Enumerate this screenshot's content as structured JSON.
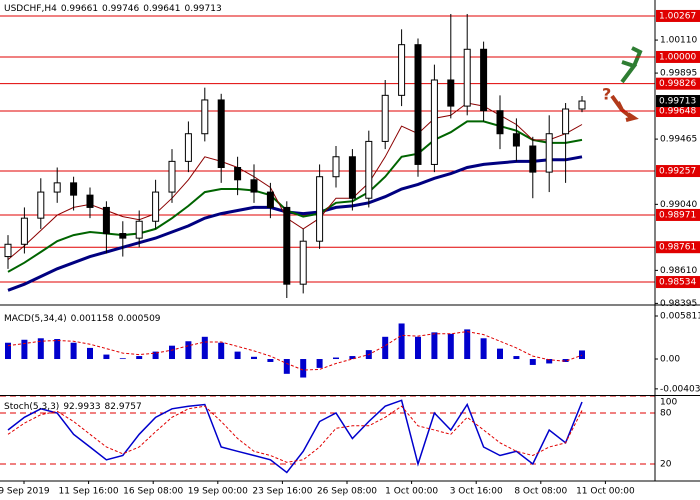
{
  "chart_data": [
    {
      "type": "candlestick",
      "title": "USDCHF,H4",
      "open": [
        0.987,
        0.9878,
        0.9895,
        0.9912,
        0.9918,
        0.991,
        0.9902,
        0.9885,
        0.9882,
        0.9893,
        0.9912,
        0.9932,
        0.995,
        0.9972,
        0.9928,
        0.992,
        0.9912,
        0.9902,
        0.9852,
        0.988,
        0.9922,
        0.9935,
        0.9908,
        0.9945,
        0.9975,
        1.0008,
        0.993,
        0.9985,
        0.9968,
        1.0005,
        0.9965,
        0.995,
        0.9942,
        0.9925,
        0.995,
        0.99661
      ],
      "high": [
        0.9884,
        0.9902,
        0.9921,
        0.9928,
        0.9922,
        0.9915,
        0.9906,
        0.9893,
        0.99,
        0.992,
        0.994,
        0.9958,
        0.998,
        0.9976,
        0.9935,
        0.993,
        0.9918,
        0.9906,
        0.9888,
        0.993,
        0.9942,
        0.994,
        0.9952,
        0.9985,
        1.0018,
        1.0012,
        0.9995,
        1.0028,
        1.0028,
        1.001,
        0.9975,
        0.996,
        0.9948,
        0.9962,
        0.997,
        0.99746
      ],
      "low": [
        0.9862,
        0.9872,
        0.9888,
        0.9905,
        0.99,
        0.9895,
        0.9872,
        0.987,
        0.9876,
        0.9888,
        0.9905,
        0.9925,
        0.9945,
        0.9918,
        0.991,
        0.9905,
        0.9895,
        0.9843,
        0.9846,
        0.9875,
        0.9915,
        0.99,
        0.9902,
        0.994,
        0.9968,
        0.9922,
        0.9925,
        0.996,
        0.9962,
        0.9958,
        0.994,
        0.9932,
        0.9908,
        0.9912,
        0.9918,
        0.99641
      ],
      "close": [
        0.9878,
        0.9895,
        0.9912,
        0.9918,
        0.991,
        0.9902,
        0.9885,
        0.9882,
        0.9893,
        0.9912,
        0.9932,
        0.995,
        0.9972,
        0.9928,
        0.992,
        0.9912,
        0.9902,
        0.9852,
        0.988,
        0.9922,
        0.9935,
        0.9908,
        0.9945,
        0.9975,
        1.0008,
        0.993,
        0.9985,
        0.9968,
        1.0005,
        0.9965,
        0.995,
        0.9942,
        0.9925,
        0.995,
        0.99661,
        0.99713
      ],
      "lines": [
        {
          "color": "#000080",
          "values": [
            0.9848,
            0.9852,
            0.9857,
            0.9862,
            0.9866,
            0.987,
            0.9873,
            0.9876,
            0.9879,
            0.9882,
            0.9886,
            0.989,
            0.9895,
            0.9898,
            0.99,
            0.9902,
            0.9902,
            0.9899,
            0.9898,
            0.9899,
            0.9902,
            0.9903,
            0.9905,
            0.9909,
            0.9914,
            0.9917,
            0.9921,
            0.9924,
            0.9928,
            0.993,
            0.9931,
            0.9932,
            0.9932,
            0.9933,
            0.9933,
            0.9935
          ]
        },
        {
          "color": "#006400",
          "values": [
            0.986,
            0.9866,
            0.9873,
            0.988,
            0.9884,
            0.9886,
            0.9885,
            0.9884,
            0.9885,
            0.9888,
            0.9895,
            0.9903,
            0.9912,
            0.9914,
            0.9914,
            0.9913,
            0.991,
            0.99,
            0.9896,
            0.9898,
            0.9905,
            0.9906,
            0.9912,
            0.9922,
            0.9935,
            0.9937,
            0.9946,
            0.9951,
            0.9958,
            0.9958,
            0.9955,
            0.9952,
            0.9946,
            0.9944,
            0.9944,
            0.9946
          ]
        },
        {
          "color": "#8b0000",
          "values": [
            0.9868,
            0.9877,
            0.9887,
            0.9897,
            0.9902,
            0.9904,
            0.99,
            0.9896,
            0.9894,
            0.9898,
            0.9908,
            0.992,
            0.9935,
            0.9932,
            0.9928,
            0.9922,
            0.9915,
            0.9895,
            0.9888,
            0.9895,
            0.9908,
            0.9908,
            0.9918,
            0.9935,
            0.9955,
            0.995,
            0.996,
            0.9962,
            0.997,
            0.9968,
            0.9962,
            0.9956,
            0.9946,
            0.9946,
            0.995,
            0.9956
          ]
        }
      ],
      "levels": [
        1.00267,
        {
          "value": 1,
          "label": "1.00000"
        },
        0.99826,
        0.99648,
        0.99257,
        0.98971,
        0.98761,
        0.98534
      ],
      "level_color": "#e00000",
      "ylim": [
        0.98391,
        1.00371
      ],
      "yticks": [
        {
          "value": 1.0011,
          "label": "1.00110"
        },
        0.99895,
        0.99465,
        {
          "value": 0.9904,
          "label": "0.99040"
        },
        {
          "value": 0.9861,
          "label": "0.98610"
        },
        0.98395
      ],
      "forecast_mark": "?"
    },
    {
      "type": "macd",
      "title": "MACD(5,34,4)",
      "color": "#0000cc",
      "signal_color": "#e00000",
      "values": [
        0.0022,
        0.0026,
        0.0028,
        0.0027,
        0.0022,
        0.0015,
        0.0006,
        0.0001,
        0.0004,
        0.001,
        0.0018,
        0.0024,
        0.003,
        0.0022,
        0.001,
        0.0003,
        -0.0004,
        -0.002,
        -0.0025,
        -0.0012,
        0.0002,
        0.0004,
        0.0012,
        0.003,
        0.0048,
        0.003,
        0.0036,
        0.0034,
        0.004,
        0.0028,
        0.0014,
        0.0004,
        -0.0008,
        -0.0006,
        -0.0004,
        0.001158
      ],
      "signal": [
        0.0018,
        0.0021,
        0.0024,
        0.0025,
        0.0024,
        0.002,
        0.0014,
        0.0008,
        0.0006,
        0.0008,
        0.0012,
        0.0018,
        0.0023,
        0.0023,
        0.0017,
        0.0011,
        0.0004,
        -0.0006,
        -0.0015,
        -0.0014,
        -0.0006,
        0.0,
        0.0006,
        0.0018,
        0.0032,
        0.0031,
        0.0034,
        0.0034,
        0.0037,
        0.0033,
        0.0024,
        0.0015,
        0.0004,
        -0.0001,
        -0.0003,
        0.000509
      ],
      "ylim": [
        -0.00486,
        0.00689
      ],
      "yticks": [
        0.005811,
        {
          "value": 0,
          "label": "0.00"
        },
        -0.004032
      ]
    },
    {
      "type": "stochastic",
      "title": "Stoch(5,3,3)",
      "series": [
        {
          "color": "#0000cc",
          "values": [
            60,
            75,
            85,
            80,
            55,
            40,
            25,
            30,
            55,
            75,
            85,
            88,
            90,
            40,
            35,
            30,
            25,
            10,
            35,
            70,
            80,
            50,
            70,
            88,
            95,
            20,
            80,
            60,
            90,
            40,
            30,
            35,
            20,
            60,
            45,
            92.9933
          ]
        },
        {
          "color": "#e00000",
          "values": [
            55,
            68,
            78,
            82,
            70,
            55,
            40,
            32,
            40,
            58,
            75,
            85,
            88,
            70,
            50,
            35,
            30,
            22,
            25,
            40,
            62,
            65,
            65,
            75,
            88,
            65,
            60,
            55,
            75,
            60,
            45,
            35,
            30,
            40,
            45,
            82.9757
          ]
        }
      ],
      "ylim": [
        0,
        100
      ],
      "yticks": [
        100,
        80,
        20
      ]
    }
  ],
  "x_axis": {
    "labels": [
      "9 Sep 2019",
      "11 Sep 16:00",
      "16 Sep 08:00",
      "19 Sep 00:00",
      "23 Sep 16:00",
      "26 Sep 08:00",
      "1 Oct 00:00",
      "3 Oct 16:00",
      "8 Oct 08:00",
      "11 Oct 00:00"
    ]
  }
}
